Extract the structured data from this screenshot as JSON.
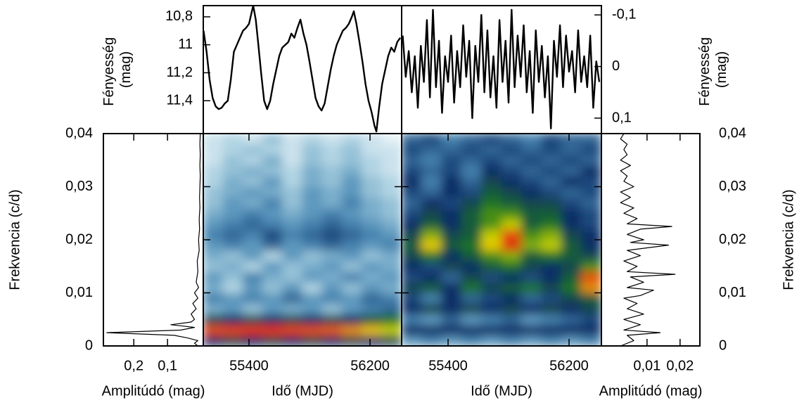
{
  "chart_data": [
    {
      "type": "line",
      "ylabel": "Fényesség (mag)",
      "color": "#000000",
      "xlim": [
        55098,
        56409
      ],
      "ylim": [
        11.635,
        10.72
      ],
      "yticks": [
        {
          "value": 10.8,
          "label": "10,8"
        },
        11,
        {
          "value": 11.2,
          "label": "11,2"
        },
        {
          "value": 11.4,
          "label": "11,4"
        }
      ],
      "x": [
        55100,
        55120,
        55140,
        55160,
        55180,
        55200,
        55220,
        55240,
        55260,
        55280,
        55300,
        55320,
        55340,
        55360,
        55380,
        55400,
        55415,
        55428,
        55445,
        55460,
        55480,
        55500,
        55520,
        55540,
        55560,
        55580,
        55600,
        55620,
        55640,
        55660,
        55680,
        55700,
        55720,
        55740,
        55760,
        55780,
        55800,
        55820,
        55840,
        55860,
        55880,
        55900,
        55920,
        55940,
        55960,
        55980,
        56000,
        56020,
        56040,
        56060,
        56080,
        56093,
        56110,
        56130,
        56150,
        56170,
        56190,
        56210,
        56230,
        56242,
        56260,
        56280,
        56300,
        56320,
        56340,
        56360,
        56380,
        56400
      ],
      "values": [
        10.9,
        11.05,
        11.25,
        11.38,
        11.44,
        11.46,
        11.45,
        11.42,
        11.4,
        11.25,
        11.05,
        11.0,
        10.95,
        10.9,
        10.88,
        10.85,
        10.78,
        10.72,
        10.82,
        10.98,
        11.2,
        11.4,
        11.46,
        11.4,
        11.28,
        11.18,
        11.08,
        11.02,
        11.0,
        10.98,
        10.92,
        10.95,
        10.88,
        10.82,
        10.92,
        11.0,
        11.12,
        11.25,
        11.38,
        11.44,
        11.47,
        11.42,
        11.3,
        11.18,
        11.08,
        11.0,
        10.95,
        10.9,
        10.88,
        10.85,
        10.8,
        10.76,
        10.85,
        10.98,
        11.12,
        11.28,
        11.4,
        11.48,
        11.58,
        11.62,
        11.45,
        11.28,
        11.18,
        11.08,
        11.02,
        11.05,
        10.98,
        10.95
      ]
    },
    {
      "type": "line",
      "ylabel": "Fényesség (mag)",
      "color": "#000000",
      "xlim": [
        55093,
        56414
      ],
      "ylim": [
        0.13,
        -0.118
      ],
      "yticks": [
        {
          "value": -0.1,
          "label": "-0,1"
        },
        0,
        {
          "value": 0.1,
          "label": "0,1"
        }
      ],
      "x": [
        55100,
        55120,
        55140,
        55160,
        55180,
        55200,
        55220,
        55240,
        55260,
        55280,
        55300,
        55320,
        55340,
        55360,
        55380,
        55400,
        55420,
        55440,
        55460,
        55480,
        55500,
        55520,
        55540,
        55560,
        55580,
        55600,
        55620,
        55640,
        55660,
        55680,
        55700,
        55720,
        55740,
        55760,
        55780,
        55800,
        55820,
        55840,
        55860,
        55880,
        55900,
        55920,
        55940,
        55960,
        55980,
        56000,
        56020,
        56040,
        56060,
        56080,
        56100,
        56120,
        56140,
        56160,
        56180,
        56200,
        56220,
        56240,
        56260,
        56280,
        56300,
        56320,
        56340,
        56360,
        56380,
        56400
      ],
      "values": [
        -0.06,
        0.02,
        -0.03,
        0.05,
        -0.02,
        0.08,
        -0.04,
        0.03,
        -0.09,
        0.06,
        -0.11,
        0.04,
        -0.05,
        0.09,
        -0.02,
        0.03,
        -0.06,
        0.07,
        -0.03,
        0.04,
        -0.08,
        0.02,
        -0.05,
        0.1,
        -0.04,
        0.03,
        -0.1,
        0.05,
        -0.07,
        0.06,
        -0.02,
        0.08,
        -0.09,
        0.03,
        -0.05,
        0.07,
        -0.11,
        0.04,
        -0.06,
        0.02,
        -0.08,
        0.05,
        -0.03,
        0.09,
        -0.07,
        0.03,
        -0.04,
        0.06,
        -0.02,
        0.12,
        -0.05,
        0.02,
        -0.08,
        0.04,
        -0.06,
        0.01,
        -0.03,
        0.05,
        -0.07,
        0.03,
        -0.02,
        0.04,
        -0.06,
        0.08,
        -0.01,
        0.03
      ]
    },
    {
      "type": "heatmap",
      "xlabel": "Idő (MJD)",
      "ylabel": "Frekvencia (c/d)",
      "xlim": [
        55098,
        56409
      ],
      "ylim": [
        0,
        0.04
      ],
      "xticks": [
        55400,
        56200
      ],
      "yticks": [
        0,
        {
          "value": 0.01,
          "label": "0,01"
        },
        {
          "value": 0.02,
          "label": "0,02"
        },
        {
          "value": 0.03,
          "label": "0,03"
        },
        {
          "value": 0.04,
          "label": "0,04"
        }
      ],
      "zlim": [
        0,
        1
      ],
      "colorscale": [
        "#ffffff",
        "#a8cfe0",
        "#4a8ab5",
        "#0d2f66",
        "#1e7a1e",
        "#e8e000",
        "#e01010"
      ],
      "z": [
        [
          0.5,
          0.55,
          0.5,
          0.55,
          0.5,
          0.55,
          0.5,
          0.55,
          0.5,
          0.55
        ],
        [
          0.95,
          0.96,
          0.97,
          0.97,
          0.96,
          0.95,
          0.94,
          0.9,
          0.86,
          0.8
        ],
        [
          0.55,
          0.5,
          0.55,
          0.5,
          0.55,
          0.5,
          0.55,
          0.5,
          0.6,
          0.65
        ],
        [
          0.25,
          0.3,
          0.2,
          0.3,
          0.25,
          0.3,
          0.2,
          0.3,
          0.35,
          0.4
        ],
        [
          0.35,
          0.3,
          0.35,
          0.3,
          0.4,
          0.3,
          0.35,
          0.3,
          0.4,
          0.35
        ],
        [
          0.25,
          0.15,
          0.3,
          0.2,
          0.3,
          0.15,
          0.3,
          0.2,
          0.3,
          0.25
        ],
        [
          0.3,
          0.2,
          0.35,
          0.25,
          0.2,
          0.3,
          0.25,
          0.35,
          0.25,
          0.3
        ],
        [
          0.2,
          0.25,
          0.15,
          0.3,
          0.2,
          0.25,
          0.3,
          0.2,
          0.3,
          0.25
        ],
        [
          0.25,
          0.2,
          0.3,
          0.15,
          0.3,
          0.2,
          0.25,
          0.3,
          0.2,
          0.25
        ],
        [
          0.3,
          0.35,
          0.3,
          0.4,
          0.3,
          0.35,
          0.4,
          0.35,
          0.3,
          0.35
        ],
        [
          0.35,
          0.4,
          0.35,
          0.45,
          0.35,
          0.4,
          0.45,
          0.4,
          0.35,
          0.3
        ],
        [
          0.3,
          0.35,
          0.4,
          0.35,
          0.3,
          0.35,
          0.4,
          0.35,
          0.3,
          0.25
        ],
        [
          0.25,
          0.3,
          0.35,
          0.3,
          0.25,
          0.3,
          0.35,
          0.3,
          0.25,
          0.2
        ],
        [
          0.2,
          0.3,
          0.25,
          0.35,
          0.2,
          0.3,
          0.25,
          0.35,
          0.25,
          0.2
        ],
        [
          0.2,
          0.25,
          0.3,
          0.25,
          0.2,
          0.3,
          0.25,
          0.3,
          0.2,
          0.15
        ],
        [
          0.15,
          0.25,
          0.2,
          0.3,
          0.15,
          0.25,
          0.2,
          0.3,
          0.2,
          0.15
        ],
        [
          0.15,
          0.2,
          0.25,
          0.2,
          0.15,
          0.25,
          0.2,
          0.25,
          0.15,
          0.1
        ],
        [
          0.1,
          0.2,
          0.15,
          0.25,
          0.1,
          0.2,
          0.15,
          0.2,
          0.15,
          0.1
        ],
        [
          0.1,
          0.15,
          0.2,
          0.15,
          0.1,
          0.2,
          0.15,
          0.2,
          0.1,
          0.1
        ],
        [
          0.1,
          0.15,
          0.1,
          0.2,
          0.1,
          0.15,
          0.1,
          0.15,
          0.1,
          0.05
        ]
      ]
    },
    {
      "type": "heatmap",
      "xlabel": "Idő (MJD)",
      "ylabel": "Frekvencia (c/d)",
      "xlim": [
        55093,
        56414
      ],
      "ylim": [
        0,
        0.04
      ],
      "xticks": [
        55400,
        56200
      ],
      "yticks": [
        0,
        {
          "value": 0.01,
          "label": "0,01"
        },
        {
          "value": 0.02,
          "label": "0,02"
        },
        {
          "value": 0.03,
          "label": "0,03"
        },
        {
          "value": 0.04,
          "label": "0,04"
        }
      ],
      "zlim": [
        0,
        1
      ],
      "colorscale": [
        "#ffffff",
        "#a8cfe0",
        "#4a8ab5",
        "#0d2f66",
        "#1e7a1e",
        "#e8e000",
        "#e01010"
      ],
      "z": [
        [
          0.3,
          0.35,
          0.3,
          0.35,
          0.3,
          0.35,
          0.3,
          0.35,
          0.3,
          0.35
        ],
        [
          0.5,
          0.5,
          0.5,
          0.5,
          0.5,
          0.5,
          0.5,
          0.5,
          0.5,
          0.5
        ],
        [
          0.35,
          0.3,
          0.4,
          0.3,
          0.35,
          0.4,
          0.3,
          0.35,
          0.4,
          0.45
        ],
        [
          0.5,
          0.55,
          0.5,
          0.55,
          0.5,
          0.55,
          0.5,
          0.55,
          0.5,
          0.55
        ],
        [
          0.45,
          0.35,
          0.5,
          0.4,
          0.45,
          0.5,
          0.4,
          0.45,
          0.55,
          0.6
        ],
        [
          0.55,
          0.6,
          0.5,
          0.65,
          0.55,
          0.6,
          0.65,
          0.55,
          0.65,
          0.9
        ],
        [
          0.45,
          0.5,
          0.4,
          0.55,
          0.45,
          0.5,
          0.45,
          0.5,
          0.6,
          0.95
        ],
        [
          0.5,
          0.45,
          0.55,
          0.5,
          0.6,
          0.65,
          0.55,
          0.5,
          0.55,
          0.7
        ],
        [
          0.55,
          0.65,
          0.5,
          0.6,
          0.7,
          0.75,
          0.6,
          0.65,
          0.6,
          0.55
        ],
        [
          0.6,
          0.85,
          0.6,
          0.65,
          0.85,
          0.98,
          0.75,
          0.8,
          0.6,
          0.5
        ],
        [
          0.55,
          0.75,
          0.55,
          0.6,
          0.8,
          0.95,
          0.7,
          0.75,
          0.55,
          0.5
        ],
        [
          0.5,
          0.6,
          0.5,
          0.6,
          0.7,
          0.8,
          0.6,
          0.65,
          0.5,
          0.45
        ],
        [
          0.45,
          0.55,
          0.5,
          0.6,
          0.7,
          0.7,
          0.6,
          0.6,
          0.5,
          0.45
        ],
        [
          0.4,
          0.5,
          0.45,
          0.55,
          0.65,
          0.6,
          0.55,
          0.55,
          0.45,
          0.4
        ],
        [
          0.45,
          0.4,
          0.5,
          0.45,
          0.6,
          0.55,
          0.5,
          0.45,
          0.4,
          0.45
        ],
        [
          0.5,
          0.35,
          0.5,
          0.4,
          0.55,
          0.5,
          0.45,
          0.4,
          0.5,
          0.45
        ],
        [
          0.45,
          0.4,
          0.45,
          0.35,
          0.5,
          0.45,
          0.4,
          0.45,
          0.4,
          0.5
        ],
        [
          0.4,
          0.35,
          0.45,
          0.4,
          0.45,
          0.4,
          0.45,
          0.4,
          0.45,
          0.4
        ],
        [
          0.45,
          0.4,
          0.4,
          0.45,
          0.4,
          0.45,
          0.4,
          0.45,
          0.4,
          0.45
        ],
        [
          0.4,
          0.45,
          0.35,
          0.4,
          0.45,
          0.4,
          0.35,
          0.45,
          0.4,
          0.4
        ]
      ]
    },
    {
      "type": "line",
      "orientation": "horizontal",
      "xlabel": "Amplitúdó (mag)",
      "color": "#000000",
      "xlim": [
        0.29,
        -0.006
      ],
      "ylim": [
        0,
        0.04
      ],
      "xticks": [
        {
          "value": 0.2,
          "label": "0,2"
        },
        {
          "value": 0.1,
          "label": "0,1"
        }
      ],
      "y": [
        0,
        0.0005,
        0.001,
        0.0015,
        0.002,
        0.0025,
        0.003,
        0.0035,
        0.004,
        0.0045,
        0.005,
        0.006,
        0.007,
        0.008,
        0.009,
        0.01,
        0.011,
        0.012,
        0.014,
        0.016,
        0.018,
        0.02,
        0.022,
        0.024,
        0.026,
        0.028,
        0.03,
        0.032,
        0.034,
        0.036,
        0.038,
        0.04
      ],
      "values": [
        0.01,
        0.02,
        0.01,
        0.04,
        0.08,
        0.28,
        0.06,
        0.02,
        0.09,
        0.03,
        0.02,
        0.03,
        0.015,
        0.025,
        0.01,
        0.02,
        0.008,
        0.015,
        0.01,
        0.012,
        0.006,
        0.008,
        0.005,
        0.006,
        0.004,
        0.005,
        0.004,
        0.003,
        0.004,
        0.003,
        0.004,
        0.003
      ]
    },
    {
      "type": "line",
      "orientation": "horizontal",
      "xlabel": "Amplitúdó (mag)",
      "color": "#000000",
      "xlim": [
        -0.0038,
        0.026
      ],
      "ylim": [
        0,
        0.04
      ],
      "xticks": [
        {
          "value": 0.01,
          "label": "0,01"
        },
        {
          "value": 0.02,
          "label": "0,02"
        }
      ],
      "y": [
        0,
        0.001,
        0.002,
        0.0025,
        0.003,
        0.004,
        0.005,
        0.006,
        0.007,
        0.008,
        0.009,
        0.0095,
        0.0105,
        0.011,
        0.012,
        0.013,
        0.0135,
        0.014,
        0.015,
        0.016,
        0.017,
        0.018,
        0.019,
        0.0195,
        0.02,
        0.021,
        0.022,
        0.0225,
        0.023,
        0.024,
        0.025,
        0.026,
        0.027,
        0.028,
        0.029,
        0.03,
        0.031,
        0.032,
        0.033,
        0.034,
        0.035,
        0.036,
        0.037,
        0.038,
        0.039,
        0.04
      ],
      "values": [
        0.002,
        0.006,
        0.004,
        0.014,
        0.003,
        0.008,
        0.003,
        0.009,
        0.004,
        0.007,
        0.003,
        0.008,
        0.012,
        0.004,
        0.009,
        0.005,
        0.0185,
        0.004,
        0.007,
        0.003,
        0.008,
        0.004,
        0.0165,
        0.005,
        0.009,
        0.004,
        0.008,
        0.0175,
        0.004,
        0.007,
        0.003,
        0.006,
        0.002,
        0.005,
        0.002,
        0.006,
        0.003,
        0.004,
        0.002,
        0.005,
        0.002,
        0.004,
        0.003,
        0.004,
        0.002,
        0.003
      ]
    }
  ]
}
